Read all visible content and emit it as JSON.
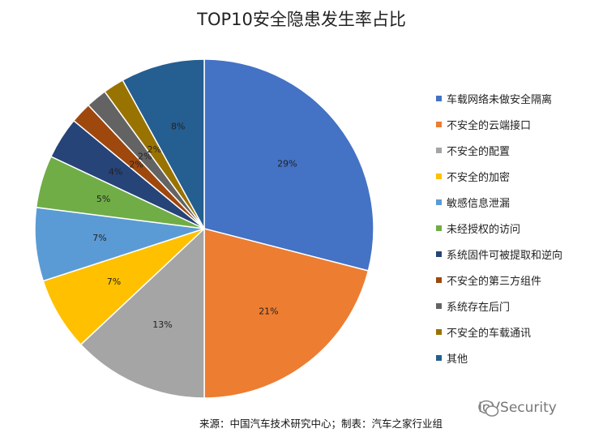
{
  "chart_data": {
    "type": "pie",
    "title": "TOP10安全隐患发生率占比",
    "start_angle_deg": 0,
    "direction": "clockwise",
    "slices": [
      {
        "label": "车载网络未做安全隔离",
        "value": 29,
        "data_label": "29%",
        "color": "#4472C4"
      },
      {
        "label": "不安全的云端接口",
        "value": 21,
        "data_label": "21%",
        "color": "#ED7D31"
      },
      {
        "label": "不安全的配置",
        "value": 13,
        "data_label": "13%",
        "color": "#A5A5A5"
      },
      {
        "label": "不安全的加密",
        "value": 7,
        "data_label": "7%",
        "color": "#FFC000"
      },
      {
        "label": "敏感信息泄漏",
        "value": 7,
        "data_label": "7%",
        "color": "#5B9BD5"
      },
      {
        "label": "未经授权的访问",
        "value": 5,
        "data_label": "5%",
        "color": "#70AD47"
      },
      {
        "label": "系统固件可被提取和逆向",
        "value": 4,
        "data_label": "4%",
        "color": "#264478"
      },
      {
        "label": "不安全的第三方组件",
        "value": 2,
        "data_label": "2%",
        "color": "#9E480E"
      },
      {
        "label": "系统存在后门",
        "value": 2,
        "data_label": "2%",
        "color": "#636363"
      },
      {
        "label": "不安全的车载通讯",
        "value": 2,
        "data_label": "2%",
        "color": "#997300"
      },
      {
        "label": "其他",
        "value": 8,
        "data_label": "8%",
        "color": "#255E91"
      }
    ],
    "legend_position": "right"
  },
  "footer": {
    "source": "来源：中国汽车技术研究中心；制表：汽车之家行业组"
  },
  "watermark": {
    "text": "IoVSecurity"
  }
}
